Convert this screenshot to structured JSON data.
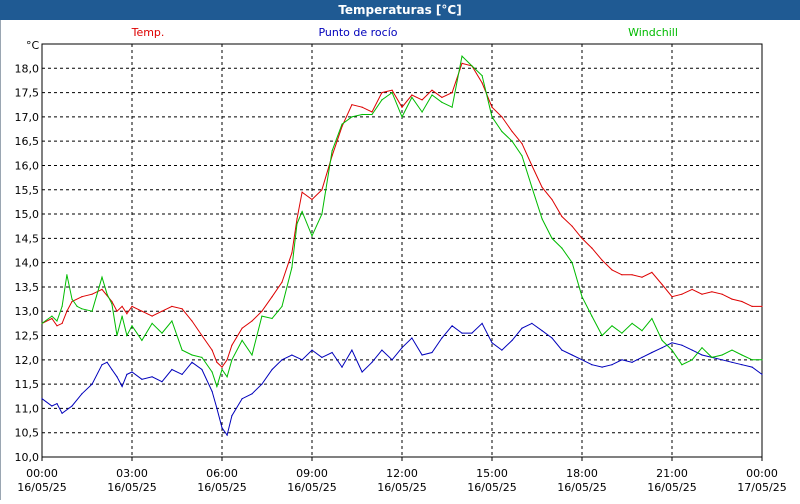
{
  "window": {
    "title": "Temperaturas [°C]"
  },
  "chart_data": {
    "type": "line",
    "title": "Temperaturas [°C]",
    "ylabel": "°C",
    "xlabel": "",
    "grid": true,
    "legend_placement": "top",
    "ylim": [
      10.0,
      18.5
    ],
    "xlim": [
      0,
      24
    ],
    "y_ticks": [
      "10,0",
      "10,5",
      "11,0",
      "11,5",
      "12,0",
      "12,5",
      "13,0",
      "13,5",
      "14,0",
      "14,5",
      "15,0",
      "15,5",
      "16,0",
      "16,5",
      "17,0",
      "17,5",
      "18,0"
    ],
    "x_ticks": [
      {
        "time": "00:00",
        "date": "16/05/25"
      },
      {
        "time": "03:00",
        "date": "16/05/25"
      },
      {
        "time": "06:00",
        "date": "16/05/25"
      },
      {
        "time": "09:00",
        "date": "16/05/25"
      },
      {
        "time": "12:00",
        "date": "16/05/25"
      },
      {
        "time": "15:00",
        "date": "16/05/25"
      },
      {
        "time": "18:00",
        "date": "16/05/25"
      },
      {
        "time": "21:00",
        "date": "16/05/25"
      },
      {
        "time": "00:00",
        "date": "17/05/25"
      }
    ],
    "series": [
      {
        "name": "Temp.",
        "color": "#dd0000",
        "x": [
          0,
          0.33,
          0.5,
          0.67,
          0.83,
          1.0,
          1.33,
          1.67,
          2.0,
          2.33,
          2.5,
          2.67,
          2.83,
          3.0,
          3.33,
          3.67,
          4.0,
          4.33,
          4.67,
          5.0,
          5.33,
          5.67,
          5.83,
          6.0,
          6.17,
          6.33,
          6.67,
          7.0,
          7.33,
          7.67,
          8.0,
          8.33,
          8.5,
          8.67,
          9.0,
          9.33,
          9.67,
          10.0,
          10.33,
          10.67,
          11.0,
          11.33,
          11.67,
          12.0,
          12.33,
          12.67,
          13.0,
          13.33,
          13.67,
          14.0,
          14.33,
          14.67,
          15.0,
          15.33,
          15.67,
          16.0,
          16.33,
          16.67,
          17.0,
          17.33,
          17.67,
          18.0,
          18.33,
          18.67,
          19.0,
          19.33,
          19.67,
          20.0,
          20.33,
          20.67,
          21.0,
          21.33,
          21.67,
          22.0,
          22.33,
          22.67,
          23.0,
          23.33,
          23.67,
          24.0
        ],
        "values": [
          12.75,
          12.85,
          12.7,
          12.75,
          13.0,
          13.2,
          13.3,
          13.35,
          13.45,
          13.2,
          13.0,
          13.1,
          12.95,
          13.1,
          13.0,
          12.9,
          13.0,
          13.1,
          13.05,
          12.8,
          12.5,
          12.2,
          11.95,
          11.85,
          12.0,
          12.3,
          12.65,
          12.8,
          13.0,
          13.3,
          13.6,
          14.2,
          14.9,
          15.45,
          15.3,
          15.5,
          16.2,
          16.8,
          17.25,
          17.2,
          17.1,
          17.5,
          17.55,
          17.2,
          17.45,
          17.35,
          17.55,
          17.4,
          17.5,
          18.1,
          18.05,
          17.7,
          17.2,
          17.0,
          16.7,
          16.45,
          16.0,
          15.55,
          15.3,
          14.95,
          14.75,
          14.5,
          14.3,
          14.05,
          13.85,
          13.75,
          13.75,
          13.7,
          13.8,
          13.55,
          13.3,
          13.35,
          13.45,
          13.35,
          13.4,
          13.35,
          13.25,
          13.2,
          13.1,
          13.1
        ]
      },
      {
        "name": "Punto de rocío",
        "color": "#0000bb",
        "x": [
          0,
          0.33,
          0.5,
          0.67,
          1.0,
          1.33,
          1.67,
          2.0,
          2.17,
          2.33,
          2.5,
          2.67,
          2.83,
          3.0,
          3.33,
          3.67,
          4.0,
          4.33,
          4.67,
          5.0,
          5.33,
          5.67,
          5.83,
          6.0,
          6.17,
          6.33,
          6.67,
          7.0,
          7.33,
          7.67,
          8.0,
          8.33,
          8.67,
          9.0,
          9.33,
          9.67,
          10.0,
          10.33,
          10.67,
          11.0,
          11.33,
          11.67,
          12.0,
          12.33,
          12.67,
          13.0,
          13.33,
          13.67,
          14.0,
          14.33,
          14.67,
          15.0,
          15.33,
          15.67,
          16.0,
          16.33,
          16.67,
          17.0,
          17.33,
          17.67,
          18.0,
          18.33,
          18.67,
          19.0,
          19.33,
          19.67,
          20.0,
          20.33,
          20.67,
          21.0,
          21.33,
          21.67,
          22.0,
          22.33,
          22.67,
          23.0,
          23.33,
          23.67,
          24.0
        ],
        "values": [
          11.2,
          11.05,
          11.1,
          10.9,
          11.05,
          11.3,
          11.5,
          11.9,
          11.95,
          11.8,
          11.65,
          11.45,
          11.7,
          11.75,
          11.6,
          11.65,
          11.55,
          11.8,
          11.7,
          11.95,
          11.8,
          11.35,
          11.0,
          10.6,
          10.45,
          10.85,
          11.2,
          11.3,
          11.5,
          11.8,
          12.0,
          12.1,
          12.0,
          12.2,
          12.05,
          12.15,
          11.85,
          12.2,
          11.75,
          11.95,
          12.2,
          12.0,
          12.25,
          12.45,
          12.1,
          12.15,
          12.45,
          12.7,
          12.55,
          12.55,
          12.75,
          12.35,
          12.2,
          12.4,
          12.65,
          12.75,
          12.6,
          12.45,
          12.2,
          12.1,
          12.0,
          11.9,
          11.85,
          11.9,
          12.0,
          11.95,
          12.05,
          12.15,
          12.25,
          12.35,
          12.3,
          12.2,
          12.1,
          12.05,
          12.0,
          11.95,
          11.9,
          11.85,
          11.7
        ]
      },
      {
        "name": "Windchill",
        "color": "#00bb00",
        "x": [
          0,
          0.33,
          0.5,
          0.67,
          0.83,
          1.0,
          1.17,
          1.33,
          1.67,
          2.0,
          2.17,
          2.33,
          2.5,
          2.67,
          2.83,
          3.0,
          3.33,
          3.67,
          4.0,
          4.33,
          4.67,
          5.0,
          5.33,
          5.67,
          5.83,
          6.0,
          6.17,
          6.33,
          6.67,
          7.0,
          7.33,
          7.67,
          8.0,
          8.33,
          8.5,
          8.67,
          9.0,
          9.33,
          9.67,
          10.0,
          10.33,
          10.67,
          11.0,
          11.33,
          11.67,
          12.0,
          12.33,
          12.67,
          13.0,
          13.33,
          13.67,
          14.0,
          14.33,
          14.67,
          15.0,
          15.33,
          15.67,
          16.0,
          16.33,
          16.67,
          17.0,
          17.33,
          17.67,
          18.0,
          18.33,
          18.67,
          19.0,
          19.33,
          19.67,
          20.0,
          20.33,
          20.67,
          21.0,
          21.33,
          21.67,
          22.0,
          22.33,
          22.67,
          23.0,
          23.33,
          23.67,
          24.0
        ],
        "values": [
          12.75,
          12.9,
          12.8,
          13.1,
          13.75,
          13.25,
          13.1,
          13.05,
          13.0,
          13.7,
          13.35,
          13.15,
          12.5,
          12.9,
          12.5,
          12.7,
          12.4,
          12.75,
          12.55,
          12.8,
          12.2,
          12.1,
          12.05,
          11.75,
          11.45,
          11.8,
          11.65,
          12.0,
          12.4,
          12.1,
          12.9,
          12.85,
          13.1,
          13.9,
          14.8,
          15.05,
          14.55,
          15.0,
          16.3,
          16.85,
          17.0,
          17.05,
          17.05,
          17.35,
          17.5,
          17.0,
          17.4,
          17.1,
          17.45,
          17.3,
          17.2,
          18.25,
          18.05,
          17.85,
          17.0,
          16.7,
          16.5,
          16.2,
          15.55,
          14.9,
          14.5,
          14.3,
          14.0,
          13.3,
          12.9,
          12.5,
          12.7,
          12.55,
          12.75,
          12.6,
          12.85,
          12.4,
          12.2,
          11.9,
          12.0,
          12.25,
          12.05,
          12.1,
          12.2,
          12.1,
          12.0,
          12.0
        ]
      }
    ]
  }
}
